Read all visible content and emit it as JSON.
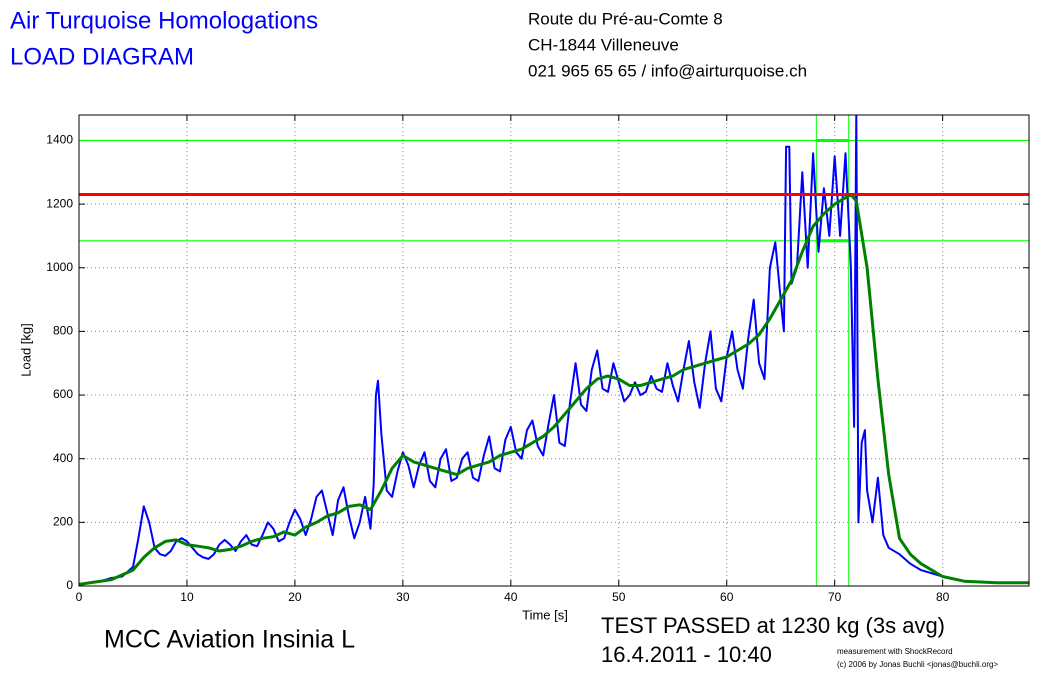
{
  "chart_data": {
    "type": "line",
    "title": "Air Turquoise Homologations",
    "subtitle": "LOAD DIAGRAM",
    "address": [
      "Route du Pré-au-Comte 8",
      "CH-1844 Villeneuve",
      "021 965 65 65 / info@airturquoise.ch"
    ],
    "glider": "MCC Aviation Insinia L",
    "result": "TEST PASSED at 1230 kg (3s avg)",
    "date": "16.4.2011 - 10:40",
    "credits": [
      "measurement with ShockRecord",
      "(c) 2006 by Jonas Buchli <jonas@buchli.org>"
    ],
    "xlabel": "Time [s]",
    "ylabel": "Load [kg]",
    "xlim": [
      0,
      88
    ],
    "ylim": [
      0,
      1480
    ],
    "xticks": [
      0,
      10,
      20,
      30,
      40,
      50,
      60,
      70,
      80
    ],
    "yticks": [
      0,
      200,
      400,
      600,
      800,
      1000,
      1200,
      1400
    ],
    "grid": true,
    "series": [
      {
        "color": "#0000ff",
        "x": [
          0,
          2,
          3,
          4,
          5,
          5.5,
          6,
          6.5,
          7,
          7.5,
          8,
          8.5,
          9,
          9.5,
          10,
          10.5,
          11,
          11.5,
          12,
          12.5,
          13,
          13.5,
          14,
          14.5,
          15,
          15.5,
          16,
          16.5,
          17,
          17.5,
          18,
          18.5,
          19,
          19.5,
          20,
          20.5,
          21,
          21.5,
          22,
          22.5,
          23,
          23.5,
          24,
          24.5,
          25,
          25.5,
          26,
          26.5,
          27,
          27.3,
          27.5,
          27.7,
          28,
          28.5,
          29,
          29.5,
          30,
          30.5,
          31,
          31.5,
          32,
          32.5,
          33,
          33.5,
          34,
          34.5,
          35,
          35.5,
          36,
          36.5,
          37,
          37.5,
          38,
          38.5,
          39,
          39.5,
          40,
          40.5,
          41,
          41.5,
          42,
          42.5,
          43,
          43.5,
          44,
          44.5,
          45,
          45.5,
          46,
          46.5,
          47,
          47.5,
          48,
          48.5,
          49,
          49.5,
          50,
          50.5,
          51,
          51.5,
          52,
          52.5,
          53,
          53.5,
          54,
          54.5,
          55,
          55.5,
          56,
          56.5,
          57,
          57.5,
          58,
          58.5,
          59,
          59.5,
          60,
          60.5,
          61,
          61.5,
          62,
          62.5,
          63,
          63.5,
          64,
          64.5,
          65,
          65.3,
          65.5,
          65.8,
          66,
          66.5,
          67,
          67.5,
          68,
          68.5,
          69,
          69.5,
          70,
          70.5,
          71,
          71.5,
          71.8,
          72,
          72.2,
          72.5,
          72.8,
          73,
          73.5,
          74,
          74.5,
          75,
          76,
          77,
          78,
          80,
          82,
          85,
          88
        ],
        "values": [
          5,
          15,
          25,
          30,
          60,
          150,
          250,
          200,
          120,
          100,
          95,
          110,
          140,
          150,
          140,
          120,
          100,
          90,
          85,
          100,
          130,
          145,
          130,
          110,
          140,
          160,
          130,
          125,
          160,
          200,
          180,
          140,
          150,
          200,
          240,
          210,
          160,
          210,
          280,
          300,
          230,
          160,
          270,
          310,
          220,
          150,
          200,
          280,
          180,
          320,
          600,
          645,
          480,
          300,
          280,
          360,
          420,
          380,
          310,
          380,
          420,
          330,
          310,
          400,
          430,
          330,
          340,
          400,
          420,
          340,
          330,
          410,
          470,
          370,
          360,
          460,
          500,
          420,
          400,
          490,
          520,
          440,
          410,
          510,
          600,
          450,
          440,
          580,
          700,
          570,
          550,
          680,
          740,
          620,
          610,
          700,
          640,
          580,
          600,
          640,
          600,
          610,
          660,
          620,
          610,
          700,
          630,
          580,
          680,
          770,
          640,
          560,
          700,
          800,
          620,
          580,
          720,
          800,
          680,
          620,
          780,
          900,
          700,
          650,
          1000,
          1080,
          900,
          800,
          1380,
          1380,
          950,
          1000,
          1300,
          1000,
          1360,
          1050,
          1250,
          1100,
          1350,
          1100,
          1360,
          1000,
          500,
          1480,
          200,
          450,
          490,
          300,
          200,
          340,
          160,
          120,
          100,
          70,
          50,
          30,
          15,
          10,
          10
        ]
      },
      {
        "color": "#008000",
        "x": [
          0,
          3,
          5,
          6,
          7,
          8,
          9,
          10,
          11,
          12,
          13,
          14,
          15,
          16,
          17,
          18,
          19,
          20,
          21,
          22,
          23,
          24,
          25,
          26,
          27,
          28,
          29,
          30,
          31,
          32,
          33,
          34,
          35,
          36,
          37,
          38,
          39,
          40,
          41,
          42,
          43,
          44,
          45,
          46,
          47,
          48,
          49,
          50,
          51,
          52,
          53,
          54,
          55,
          56,
          57,
          58,
          59,
          60,
          61,
          62,
          63,
          64,
          65,
          66,
          67,
          68,
          69,
          70,
          71,
          71.5,
          72,
          73,
          74,
          75,
          76,
          77,
          78,
          80,
          82,
          85,
          88
        ],
        "values": [
          5,
          20,
          50,
          90,
          120,
          140,
          145,
          130,
          125,
          120,
          110,
          115,
          125,
          140,
          150,
          155,
          170,
          160,
          185,
          200,
          220,
          230,
          250,
          255,
          240,
          300,
          370,
          410,
          390,
          380,
          370,
          360,
          350,
          370,
          380,
          390,
          410,
          420,
          430,
          450,
          470,
          500,
          540,
          580,
          620,
          650,
          660,
          650,
          630,
          630,
          640,
          650,
          660,
          680,
          690,
          700,
          710,
          720,
          740,
          760,
          790,
          840,
          900,
          960,
          1050,
          1130,
          1170,
          1200,
          1220,
          1230,
          1210,
          1000,
          650,
          350,
          150,
          100,
          70,
          30,
          15,
          10,
          10
        ]
      }
    ],
    "limit_line": {
      "y": 1230,
      "color": "#ff0000"
    },
    "window": {
      "x": [
        68.3,
        71.3
      ],
      "y": [
        1085,
        1400
      ],
      "color": "#00ff00"
    }
  }
}
